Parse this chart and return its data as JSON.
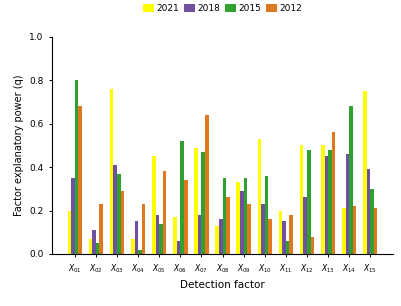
{
  "categories": [
    "X_{01}",
    "X_{02}",
    "X_{03}",
    "X_{04}",
    "X_{05}",
    "X_{06}",
    "X_{07}",
    "X_{08}",
    "X_{09}",
    "X_{10}",
    "X_{11}",
    "X_{12}",
    "X_{13}",
    "X_{14}",
    "X_{15}"
  ],
  "years": [
    "2021",
    "2018",
    "2015",
    "2012"
  ],
  "colors": [
    "#ffff00",
    "#7050a0",
    "#30a030",
    "#e07820"
  ],
  "values": {
    "2021": [
      0.2,
      0.07,
      0.76,
      0.07,
      0.45,
      0.17,
      0.49,
      0.13,
      0.33,
      0.53,
      0.2,
      0.5,
      0.5,
      0.21,
      0.75
    ],
    "2018": [
      0.35,
      0.11,
      0.41,
      0.15,
      0.18,
      0.06,
      0.18,
      0.16,
      0.29,
      0.23,
      0.15,
      0.26,
      0.45,
      0.46,
      0.39
    ],
    "2015": [
      0.8,
      0.05,
      0.37,
      0.02,
      0.14,
      0.52,
      0.47,
      0.35,
      0.35,
      0.36,
      0.06,
      0.48,
      0.48,
      0.68,
      0.3
    ],
    "2012": [
      0.68,
      0.23,
      0.29,
      0.23,
      0.38,
      0.34,
      0.64,
      0.26,
      0.23,
      0.16,
      0.18,
      0.08,
      0.56,
      0.22,
      0.21
    ]
  },
  "xlabel": "Detection factor",
  "ylabel": "Factor explanatory power (q)",
  "ylim": [
    0.0,
    1.0
  ],
  "yticks": [
    0.0,
    0.2,
    0.4,
    0.6,
    0.8,
    1.0
  ],
  "background_color": "#ffffff",
  "bar_width": 0.17,
  "figsize": [
    4.01,
    3.06
  ],
  "dpi": 100
}
